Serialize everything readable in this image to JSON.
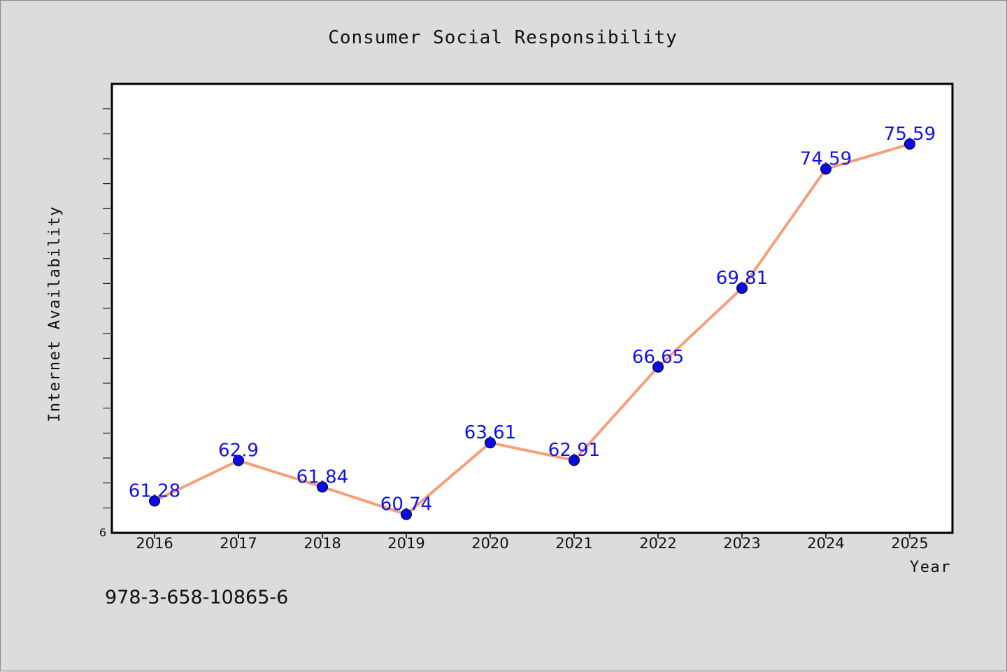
{
  "footer_code": "978-3-658-10865-6",
  "colors": {
    "background": "#dcdcdc",
    "plot_background": "#ffffff",
    "line": "#f4a07a",
    "marker": "#0a0ae6",
    "data_label": "#1010ee"
  },
  "chart_data": {
    "type": "line",
    "title": "Consumer Social Responsibility",
    "xlabel": "Year",
    "ylabel": "Internet Availability",
    "categories": [
      "2016",
      "2017",
      "2018",
      "2019",
      "2020",
      "2021",
      "2022",
      "2023",
      "2024",
      "2025"
    ],
    "series": [
      {
        "values": [
          61.28,
          62.9,
          61.84,
          60.74,
          63.61,
          62.91,
          66.65,
          69.81,
          74.59,
          75.59
        ],
        "labels": [
          "61.28",
          "62.9",
          "61.84",
          "60.74",
          "63.61",
          "62.91",
          "66.65",
          "69.81",
          "74.59",
          "75.59"
        ]
      }
    ],
    "ytick_labels": [
      "6"
    ],
    "ylim": [
      60,
      78
    ],
    "grid": false,
    "legend": "none"
  }
}
